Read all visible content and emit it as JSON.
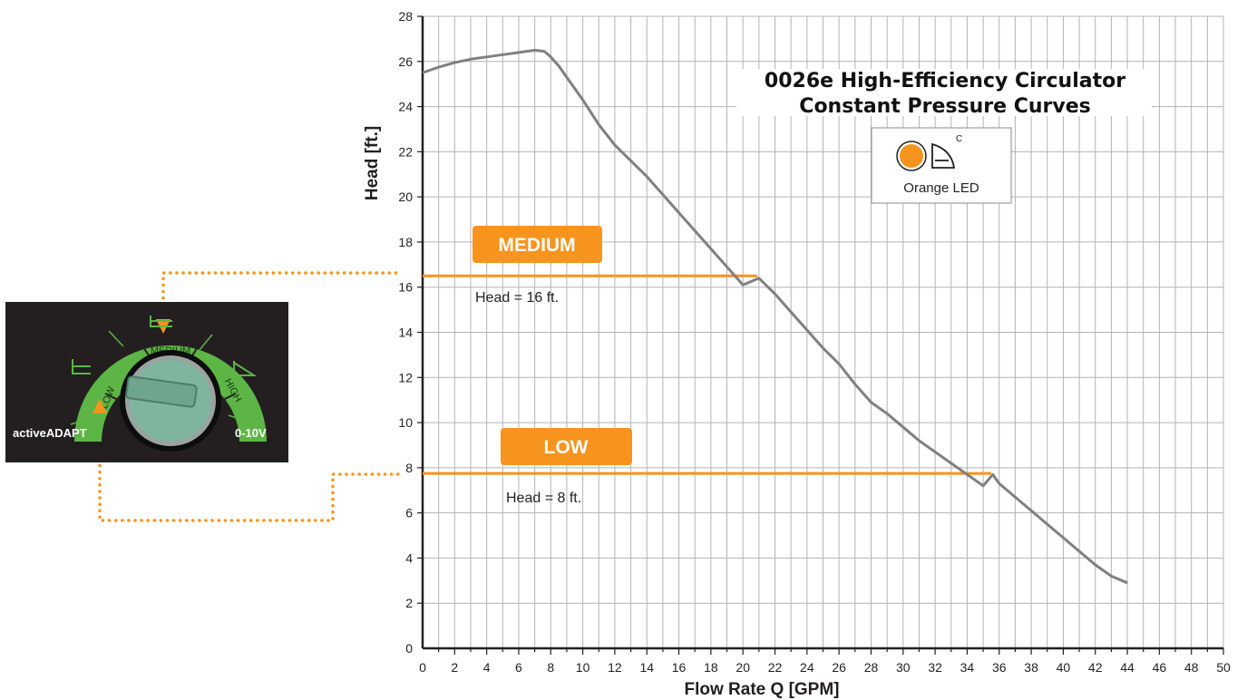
{
  "chart_data": {
    "type": "line",
    "title": "0026e High-Efficiency Circulator",
    "subtitle": "Constant Pressure Curves",
    "xlabel": "Flow Rate Q [GPM]",
    "ylabel": "Head [ft.]",
    "xlim": [
      0,
      50
    ],
    "ylim": [
      0,
      28
    ],
    "xticks": [
      0,
      2,
      4,
      6,
      8,
      10,
      12,
      14,
      16,
      18,
      20,
      22,
      24,
      26,
      28,
      30,
      32,
      34,
      36,
      38,
      40,
      42,
      44,
      46,
      48,
      50
    ],
    "yticks": [
      0,
      2,
      4,
      6,
      8,
      10,
      12,
      14,
      16,
      18,
      20,
      22,
      24,
      26,
      28
    ],
    "grid": true,
    "series": [
      {
        "x": [
          0,
          1,
          2,
          3,
          4,
          5,
          6,
          7,
          7.6,
          8,
          8.5,
          9,
          10,
          11,
          12,
          13,
          14,
          15,
          16,
          17,
          18,
          19,
          20,
          21,
          22,
          23,
          24,
          25,
          26,
          27,
          28,
          29,
          30,
          31,
          32,
          33,
          34,
          35,
          35.6,
          36,
          37,
          38,
          39,
          40,
          41,
          42,
          43,
          44
        ],
        "y": [
          25.5,
          25.75,
          25.95,
          26.1,
          26.2,
          26.3,
          26.4,
          26.5,
          26.45,
          26.2,
          25.8,
          25.3,
          24.3,
          23.2,
          22.3,
          21.6,
          20.9,
          20.1,
          19.3,
          18.5,
          17.7,
          16.9,
          16.1,
          16.4,
          15.7,
          14.9,
          14.1,
          13.3,
          12.6,
          11.7,
          10.9,
          10.4,
          9.8,
          9.2,
          8.7,
          8.2,
          7.7,
          7.2,
          7.7,
          7.3,
          6.7,
          6.1,
          5.5,
          4.9,
          4.3,
          3.7,
          3.2,
          2.9
        ],
        "color": "#808080"
      }
    ],
    "setpoints": [
      {
        "label": "MEDIUM",
        "head_label": "Head = 16 ft.",
        "head": 16.5,
        "x_end": 20.9
      },
      {
        "label": "LOW",
        "head_label": "Head = 8 ft.",
        "head": 7.75,
        "x_end": 35.5
      }
    ],
    "legend": {
      "text": "Orange LED",
      "symbol": "C",
      "placement": "top-right"
    }
  },
  "dial": {
    "labels": {
      "medium": "MEDIUM",
      "low": "LOW",
      "high": "HIGH"
    },
    "side_labels": {
      "left": "activeADAPT",
      "right": "0-10V"
    },
    "icons": [
      "constant-pressure-icon",
      "proportional-pressure-icon"
    ]
  },
  "colors": {
    "accent": "#f7941d",
    "curve": "#808080",
    "grid": "#b3b3b3",
    "dial_panel": "#231f20",
    "dial_ring": "#5db546",
    "knob": "#7fb59e"
  }
}
